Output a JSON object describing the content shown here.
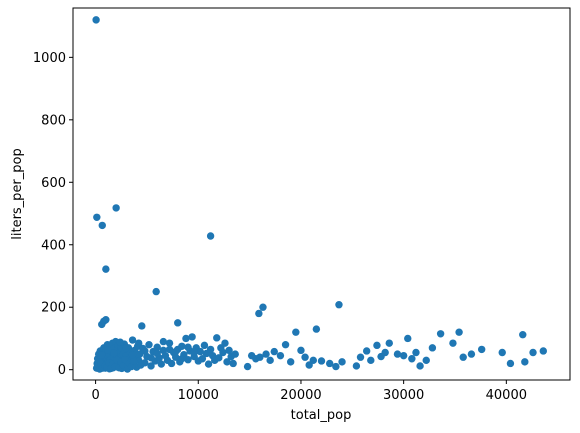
{
  "chart_data": {
    "type": "scatter",
    "title": "",
    "xlabel": "total_pop",
    "ylabel": "liters_per_pop",
    "xlim": [
      -2200,
      46200
    ],
    "ylim": [
      -33,
      1158
    ],
    "xticks": [
      0,
      10000,
      20000,
      30000,
      40000
    ],
    "yticks": [
      0,
      200,
      400,
      600,
      800,
      1000
    ],
    "grid": false,
    "marker_color": "#1f77b4",
    "points": [
      [
        50,
        1120
      ],
      [
        120,
        488
      ],
      [
        650,
        462
      ],
      [
        2000,
        518
      ],
      [
        1000,
        322
      ],
      [
        5900,
        250
      ],
      [
        11200,
        428
      ],
      [
        600,
        145
      ],
      [
        800,
        155
      ],
      [
        1000,
        160
      ],
      [
        4500,
        140
      ],
      [
        8000,
        150
      ],
      [
        15900,
        180
      ],
      [
        16300,
        200
      ],
      [
        23700,
        208
      ],
      [
        100,
        5
      ],
      [
        150,
        20
      ],
      [
        200,
        35
      ],
      [
        250,
        10
      ],
      [
        300,
        50
      ],
      [
        350,
        25
      ],
      [
        400,
        2
      ],
      [
        450,
        60
      ],
      [
        500,
        15
      ],
      [
        550,
        40
      ],
      [
        600,
        8
      ],
      [
        650,
        30
      ],
      [
        700,
        55
      ],
      [
        750,
        12
      ],
      [
        800,
        70
      ],
      [
        850,
        22
      ],
      [
        900,
        45
      ],
      [
        950,
        5
      ],
      [
        1000,
        65
      ],
      [
        1050,
        18
      ],
      [
        1100,
        38
      ],
      [
        1150,
        80
      ],
      [
        1200,
        10
      ],
      [
        1250,
        28
      ],
      [
        1300,
        52
      ],
      [
        1350,
        3
      ],
      [
        1400,
        75
      ],
      [
        1450,
        33
      ],
      [
        1500,
        14
      ],
      [
        1550,
        58
      ],
      [
        1600,
        24
      ],
      [
        1650,
        85
      ],
      [
        1700,
        6
      ],
      [
        1750,
        42
      ],
      [
        1800,
        68
      ],
      [
        1850,
        16
      ],
      [
        1900,
        30
      ],
      [
        1950,
        90
      ],
      [
        2000,
        48
      ],
      [
        2050,
        9
      ],
      [
        2100,
        62
      ],
      [
        2150,
        26
      ],
      [
        2200,
        78
      ],
      [
        2250,
        36
      ],
      [
        2300,
        12
      ],
      [
        2350,
        54
      ],
      [
        2400,
        20
      ],
      [
        2450,
        72
      ],
      [
        2500,
        40
      ],
      [
        2550,
        4
      ],
      [
        2600,
        66
      ],
      [
        2650,
        28
      ],
      [
        2700,
        50
      ],
      [
        2750,
        15
      ],
      [
        2800,
        82
      ],
      [
        2850,
        35
      ],
      [
        2900,
        60
      ],
      [
        2950,
        8
      ],
      [
        3000,
        45
      ],
      [
        3100,
        25
      ],
      [
        3200,
        70
      ],
      [
        3300,
        12
      ],
      [
        3400,
        55
      ],
      [
        3500,
        32
      ],
      [
        3600,
        95
      ],
      [
        3700,
        18
      ],
      [
        3800,
        62
      ],
      [
        3900,
        40
      ],
      [
        4000,
        8
      ],
      [
        4100,
        75
      ],
      [
        4200,
        30
      ],
      [
        4300,
        50
      ],
      [
        4400,
        15
      ],
      [
        4600,
        68
      ],
      [
        4800,
        22
      ],
      [
        5000,
        42
      ],
      [
        5200,
        80
      ],
      [
        5400,
        12
      ],
      [
        5600,
        58
      ],
      [
        5800,
        28
      ],
      [
        6000,
        72
      ],
      [
        6200,
        38
      ],
      [
        6400,
        18
      ],
      [
        6600,
        62
      ],
      [
        6800,
        45
      ],
      [
        7000,
        30
      ],
      [
        7200,
        85
      ],
      [
        7400,
        20
      ],
      [
        7600,
        55
      ],
      [
        7800,
        40
      ],
      [
        8000,
        65
      ],
      [
        8200,
        25
      ],
      [
        8400,
        75
      ],
      [
        8600,
        48
      ],
      [
        8800,
        100
      ],
      [
        9000,
        32
      ],
      [
        9200,
        60
      ],
      [
        9400,
        105
      ],
      [
        9600,
        42
      ],
      [
        9800,
        70
      ],
      [
        10000,
        28
      ],
      [
        10200,
        58
      ],
      [
        10400,
        35
      ],
      [
        10600,
        78
      ],
      [
        10800,
        52
      ],
      [
        11000,
        18
      ],
      [
        11200,
        65
      ],
      [
        11400,
        45
      ],
      [
        11600,
        30
      ],
      [
        11800,
        102
      ],
      [
        12000,
        38
      ],
      [
        12200,
        70
      ],
      [
        12400,
        55
      ],
      [
        12600,
        85
      ],
      [
        12800,
        25
      ],
      [
        13000,
        62
      ],
      [
        13200,
        42
      ],
      [
        13400,
        20
      ],
      [
        13600,
        50
      ],
      [
        14800,
        10
      ],
      [
        15200,
        45
      ],
      [
        15600,
        35
      ],
      [
        16000,
        40
      ],
      [
        16600,
        50
      ],
      [
        17000,
        30
      ],
      [
        17400,
        58
      ],
      [
        18000,
        45
      ],
      [
        18500,
        80
      ],
      [
        19000,
        25
      ],
      [
        19500,
        120
      ],
      [
        20000,
        62
      ],
      [
        20400,
        40
      ],
      [
        20800,
        15
      ],
      [
        21200,
        30
      ],
      [
        21500,
        130
      ],
      [
        22000,
        28
      ],
      [
        22800,
        20
      ],
      [
        23400,
        10
      ],
      [
        24000,
        25
      ],
      [
        25400,
        12
      ],
      [
        25800,
        40
      ],
      [
        26400,
        60
      ],
      [
        26800,
        30
      ],
      [
        27400,
        78
      ],
      [
        27800,
        42
      ],
      [
        28200,
        55
      ],
      [
        28600,
        85
      ],
      [
        29400,
        50
      ],
      [
        30000,
        45
      ],
      [
        30400,
        100
      ],
      [
        30800,
        35
      ],
      [
        31200,
        55
      ],
      [
        31600,
        12
      ],
      [
        32200,
        30
      ],
      [
        32800,
        70
      ],
      [
        33600,
        115
      ],
      [
        34800,
        85
      ],
      [
        35400,
        120
      ],
      [
        35800,
        40
      ],
      [
        36600,
        50
      ],
      [
        37600,
        65
      ],
      [
        39600,
        55
      ],
      [
        40400,
        20
      ],
      [
        41600,
        112
      ],
      [
        41800,
        25
      ],
      [
        42600,
        55
      ],
      [
        43600,
        60
      ],
      [
        500,
        20
      ],
      [
        700,
        5
      ],
      [
        900,
        12
      ],
      [
        1100,
        8
      ],
      [
        1300,
        22
      ],
      [
        1500,
        4
      ],
      [
        1700,
        18
      ],
      [
        1900,
        10
      ],
      [
        2100,
        30
      ],
      [
        2300,
        6
      ],
      [
        2500,
        24
      ],
      [
        2700,
        14
      ],
      [
        2900,
        32
      ],
      [
        3100,
        2
      ],
      [
        3300,
        20
      ],
      [
        3500,
        10
      ],
      [
        3700,
        28
      ],
      [
        600,
        48
      ],
      [
        1200,
        62
      ],
      [
        1800,
        54
      ],
      [
        2400,
        88
      ],
      [
        3000,
        70
      ],
      [
        3600,
        48
      ],
      [
        4200,
        85
      ],
      [
        4800,
        60
      ],
      [
        5400,
        38
      ],
      [
        6000,
        52
      ],
      [
        6600,
        90
      ],
      [
        7200,
        65
      ],
      [
        7800,
        58
      ],
      [
        8400,
        35
      ],
      [
        9000,
        72
      ],
      [
        9600,
        55
      ]
    ]
  }
}
